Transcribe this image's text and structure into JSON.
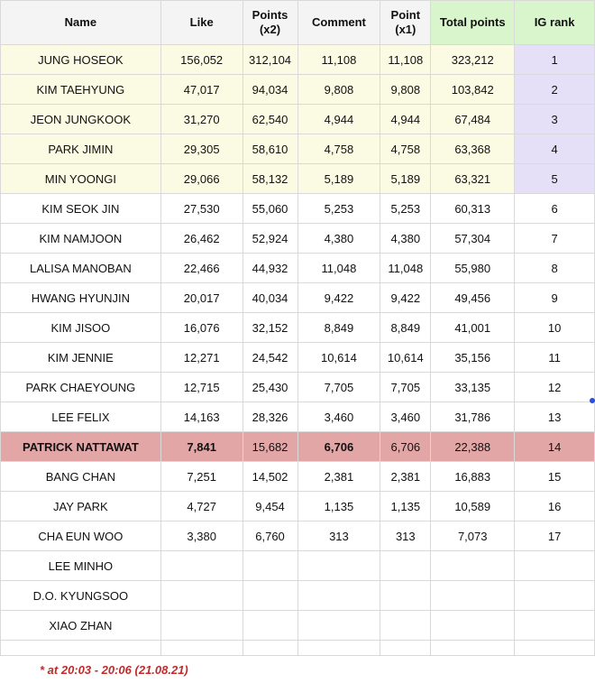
{
  "headers": {
    "name": "Name",
    "like": "Like",
    "points_x2_l1": "Points",
    "points_x2_l2": "(x2)",
    "comment": "Comment",
    "point_x1_l1": "Point",
    "point_x1_l2": "(x1)",
    "total_points": "Total  points",
    "ig_rank": "IG rank"
  },
  "rows": [
    {
      "name": "JUNG HOSEOK",
      "like": "156,052",
      "points_x2": "312,104",
      "comment": "11,108",
      "point_x1": "11,108",
      "total": "323,212",
      "rank": "1"
    },
    {
      "name": "KIM TAEHYUNG",
      "like": "47,017",
      "points_x2": "94,034",
      "comment": "9,808",
      "point_x1": "9,808",
      "total": "103,842",
      "rank": "2"
    },
    {
      "name": "JEON JUNGKOOK",
      "like": "31,270",
      "points_x2": "62,540",
      "comment": "4,944",
      "point_x1": "4,944",
      "total": "67,484",
      "rank": "3"
    },
    {
      "name": "PARK JIMIN",
      "like": "29,305",
      "points_x2": "58,610",
      "comment": "4,758",
      "point_x1": "4,758",
      "total": "63,368",
      "rank": "4"
    },
    {
      "name": "MIN YOONGI",
      "like": "29,066",
      "points_x2": "58,132",
      "comment": "5,189",
      "point_x1": "5,189",
      "total": "63,321",
      "rank": "5"
    },
    {
      "name": "KIM SEOK JIN",
      "like": "27,530",
      "points_x2": "55,060",
      "comment": "5,253",
      "point_x1": "5,253",
      "total": "60,313",
      "rank": "6"
    },
    {
      "name": "KIM NAMJOON",
      "like": "26,462",
      "points_x2": "52,924",
      "comment": "4,380",
      "point_x1": "4,380",
      "total": "57,304",
      "rank": "7"
    },
    {
      "name": "LALISA MANOBAN",
      "like": "22,466",
      "points_x2": "44,932",
      "comment": "11,048",
      "point_x1": "11,048",
      "total": "55,980",
      "rank": "8"
    },
    {
      "name": "HWANG HYUNJIN",
      "like": "20,017",
      "points_x2": "40,034",
      "comment": "9,422",
      "point_x1": "9,422",
      "total": "49,456",
      "rank": "9"
    },
    {
      "name": "KIM JISOO",
      "like": "16,076",
      "points_x2": "32,152",
      "comment": "8,849",
      "point_x1": "8,849",
      "total": "41,001",
      "rank": "10"
    },
    {
      "name": "KIM JENNIE",
      "like": "12,271",
      "points_x2": "24,542",
      "comment": "10,614",
      "point_x1": "10,614",
      "total": "35,156",
      "rank": "11"
    },
    {
      "name": "PARK CHAEYOUNG",
      "like": "12,715",
      "points_x2": "25,430",
      "comment": "7,705",
      "point_x1": "7,705",
      "total": "33,135",
      "rank": "12"
    },
    {
      "name": "LEE FELIX",
      "like": "14,163",
      "points_x2": "28,326",
      "comment": "3,460",
      "point_x1": "3,460",
      "total": "31,786",
      "rank": "13"
    },
    {
      "name": "PATRICK NATTAWAT",
      "like": "7,841",
      "points_x2": "15,682",
      "comment": "6,706",
      "point_x1": "6,706",
      "total": "22,388",
      "rank": "14"
    },
    {
      "name": "BANG CHAN",
      "like": "7,251",
      "points_x2": "14,502",
      "comment": "2,381",
      "point_x1": "2,381",
      "total": "16,883",
      "rank": "15"
    },
    {
      "name": "JAY PARK",
      "like": "4,727",
      "points_x2": "9,454",
      "comment": "1,135",
      "point_x1": "1,135",
      "total": "10,589",
      "rank": "16"
    },
    {
      "name": "CHA EUN WOO",
      "like": "3,380",
      "points_x2": "6,760",
      "comment": "313",
      "point_x1": "313",
      "total": "7,073",
      "rank": "17"
    },
    {
      "name": "LEE MINHO",
      "like": "",
      "points_x2": "",
      "comment": "",
      "point_x1": "",
      "total": "",
      "rank": ""
    },
    {
      "name": "D.O. KYUNGSOO",
      "like": "",
      "points_x2": "",
      "comment": "",
      "point_x1": "",
      "total": "",
      "rank": ""
    },
    {
      "name": "XIAO ZHAN",
      "like": "",
      "points_x2": "",
      "comment": "",
      "point_x1": "",
      "total": "",
      "rank": ""
    },
    {
      "name": "",
      "like": "",
      "points_x2": "",
      "comment": "",
      "point_x1": "",
      "total": "",
      "rank": ""
    }
  ],
  "footnote": "* at 20:03 -  20:06 (21.08.21)",
  "colors": {
    "header_bg": "#f4f4f4",
    "green_header": "#d9f5cc",
    "top5_bg": "#fbfbe3",
    "rank_top5_bg": "#e5e0f7",
    "highlight_row": "#e3a6a6",
    "footnote_text": "#c02a2a"
  }
}
